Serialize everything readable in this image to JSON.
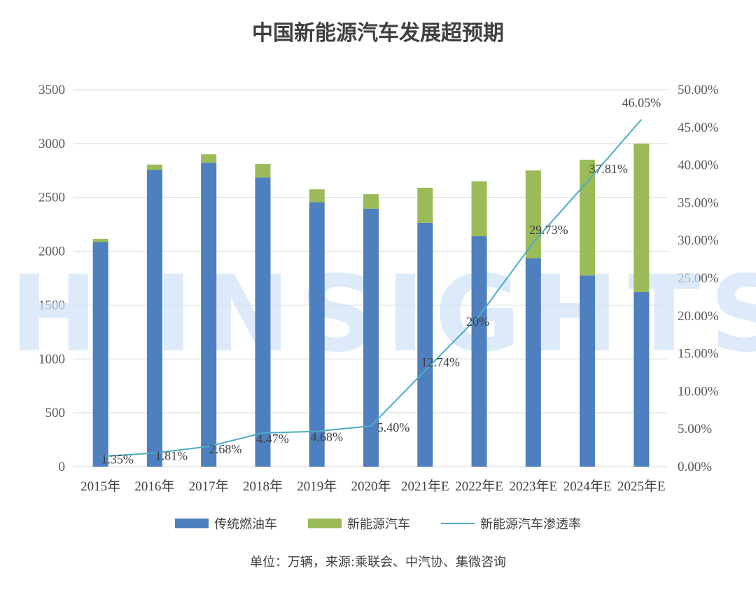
{
  "title": "中国新能源汽车发展超预期",
  "watermark": "JH INSIGHTS",
  "source_note": "单位：万辆，来源:乘联会、中汽协、集微咨询",
  "colors": {
    "ice": "#4e7fbf",
    "nev": "#9bbb59",
    "rate": "#4bacc6",
    "grid": "#d9d9d9",
    "watermark": "#cfe1f7"
  },
  "chart_data": {
    "type": "bar",
    "stacked": true,
    "title": "中国新能源汽车发展超预期",
    "categories": [
      "2015年",
      "2016年",
      "2017年",
      "2018年",
      "2019年",
      "2020年",
      "2021年E",
      "2022年E",
      "2023年E",
      "2024年E",
      "2025年E"
    ],
    "series": [
      {
        "name": "传统燃油车",
        "kind": "bar",
        "values": [
          2085,
          2755,
          2820,
          2685,
          2455,
          2395,
          2265,
          2140,
          1935,
          1775,
          1620
        ]
      },
      {
        "name": "新能源汽车",
        "kind": "bar",
        "values": [
          30,
          50,
          80,
          125,
          120,
          135,
          325,
          510,
          815,
          1075,
          1380
        ]
      },
      {
        "name": "新能源汽车渗透率",
        "kind": "line",
        "axis": "right",
        "values": [
          1.35,
          1.81,
          2.68,
          4.47,
          4.68,
          5.4,
          12.74,
          20,
          29.73,
          37.81,
          46.05
        ],
        "labels": [
          "1.35%",
          "1.81%",
          "2.68%",
          "4.47%",
          "4.68%",
          "5.40%",
          "12.74%",
          "20%",
          "29.73%",
          "37.81%",
          "46.05%"
        ]
      }
    ],
    "y_left": {
      "min": 0,
      "max": 3500,
      "ticks": [
        "0",
        "500",
        "1000",
        "1500",
        "2000",
        "2500",
        "3000",
        "3500"
      ]
    },
    "y_right": {
      "min": 0,
      "max": 50,
      "ticks": [
        "0.00%",
        "5.00%",
        "10.00%",
        "15.00%",
        "20.00%",
        "25.00%",
        "30.00%",
        "35.00%",
        "40.00%",
        "45.00%",
        "50.00%"
      ]
    },
    "grid": true,
    "legend": "bottom"
  }
}
